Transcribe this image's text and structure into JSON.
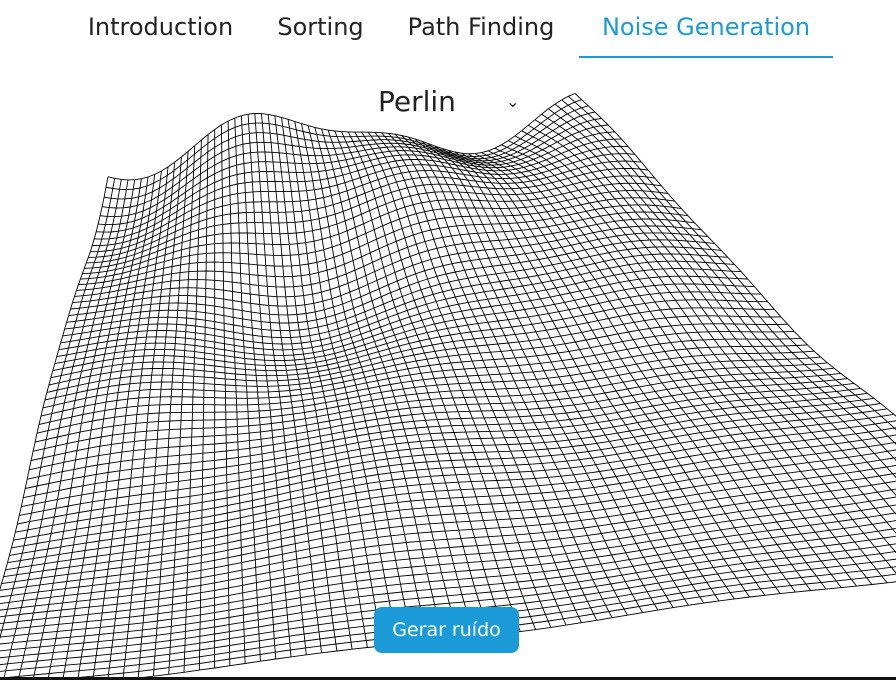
{
  "nav": {
    "tabs": [
      {
        "label": "Introduction",
        "active": false
      },
      {
        "label": "Sorting",
        "active": false
      },
      {
        "label": "Path Finding",
        "active": false
      },
      {
        "label": "Noise Generation",
        "active": true
      }
    ],
    "accent_color": "#1a9bd7"
  },
  "noise_selector": {
    "selected": "Perlin",
    "icon": "chevron-down-icon"
  },
  "terrain": {
    "description_icon": "wireframe-mesh"
  },
  "actions": {
    "generate_label": "Gerar ruído"
  }
}
